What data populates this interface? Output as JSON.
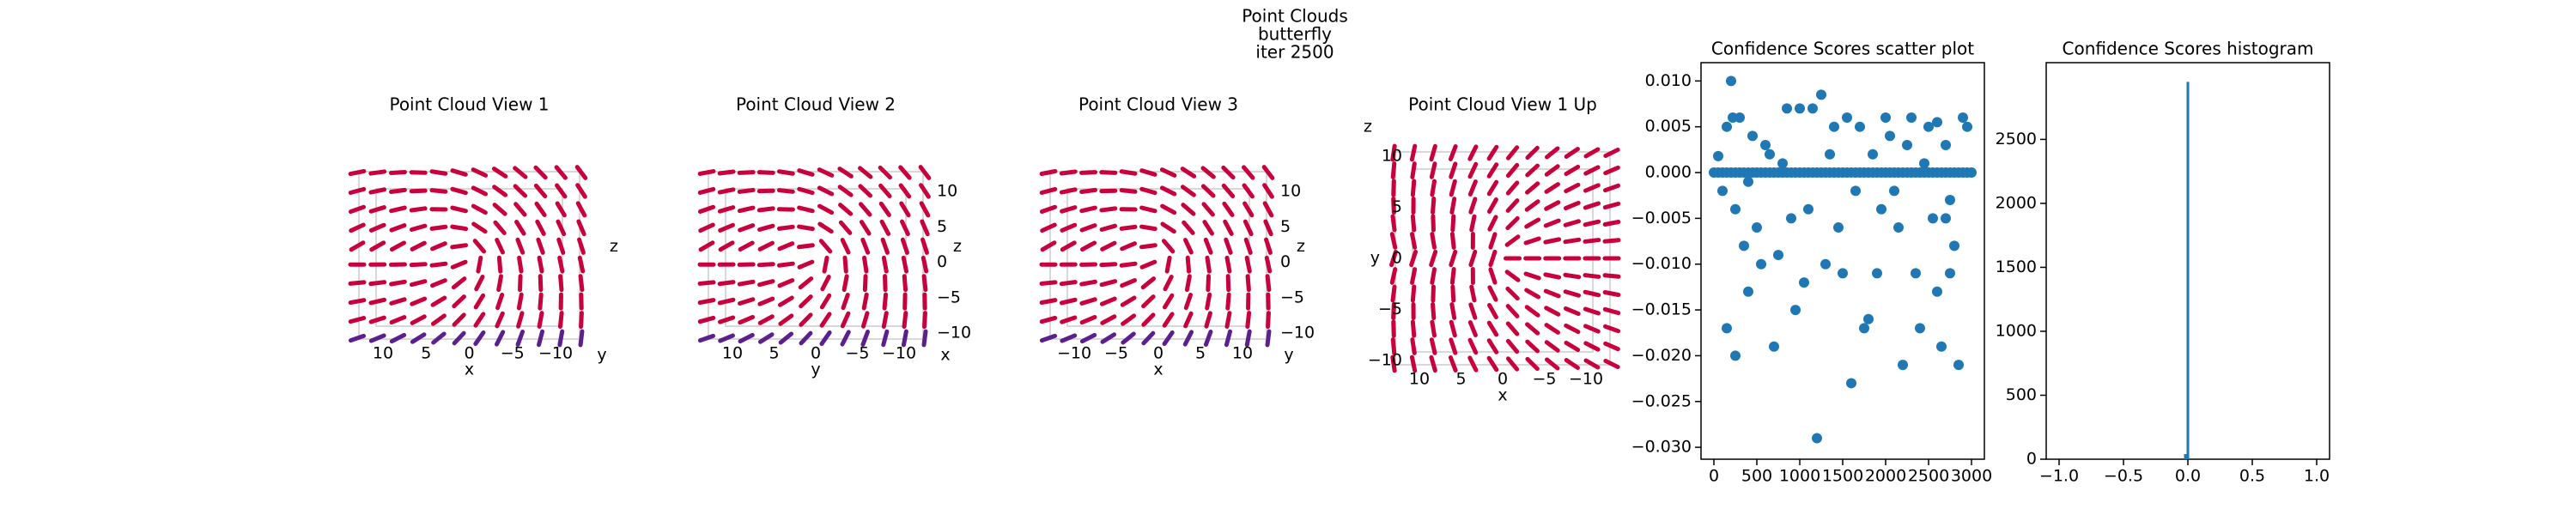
{
  "suptitle": [
    "Point Clouds",
    "butterfly",
    "iter 2500"
  ],
  "chart_data": [
    {
      "type": "pointcloud",
      "title": "Point Cloud View 1",
      "xlabel": "x",
      "zlabel": "z",
      "xticks": [
        10,
        5,
        0,
        {
          "value": -5,
          "label": "−5"
        },
        {
          "value": -10,
          "label": "−10"
        }
      ],
      "ylabel": "y"
    },
    {
      "type": "pointcloud",
      "title": "Point Cloud View 2",
      "xlabel": "y",
      "zlabel": "z",
      "xticks": [
        10,
        5,
        0,
        {
          "value": -5,
          "label": "−5"
        },
        {
          "value": -10,
          "label": "−10"
        }
      ],
      "zticks": [
        10,
        5,
        0,
        {
          "value": -5,
          "label": "−5"
        },
        {
          "value": -10,
          "label": "−10"
        }
      ],
      "ylabel": "x"
    },
    {
      "type": "pointcloud",
      "title": "Point Cloud View 3",
      "xlabel": "x",
      "zlabel": "z",
      "xticks": [
        {
          "value": -10,
          "label": "−10"
        },
        {
          "value": -5,
          "label": "−5"
        },
        0,
        5,
        10
      ],
      "zticks": [
        10,
        5,
        0,
        {
          "value": -5,
          "label": "−5"
        },
        {
          "value": -10,
          "label": "−10"
        }
      ],
      "ylabel": "y"
    },
    {
      "type": "pointcloud",
      "title": "Point Cloud View 1 Up",
      "xlabel": "x",
      "ylabel": "y",
      "zlabel": "z",
      "xticks": [
        10,
        5,
        0,
        {
          "value": -5,
          "label": "−5"
        },
        {
          "value": -10,
          "label": "−10"
        }
      ],
      "yticks": [
        10,
        5,
        0,
        {
          "value": -5,
          "label": "−5"
        },
        {
          "value": -10,
          "label": "−10"
        }
      ]
    },
    {
      "type": "scatter",
      "title": "Confidence Scores scatter plot",
      "color": "#1f77b4",
      "xlim": [
        -150,
        3150
      ],
      "xticks": [
        0,
        500,
        1000,
        1500,
        2000,
        2500,
        3000
      ],
      "ylim": [
        -0.0313,
        0.012
      ],
      "yticks": [
        {
          "value": 0.01,
          "label": "0.010"
        },
        0.005,
        {
          "value": 0,
          "label": "0.000"
        },
        {
          "value": -0.005,
          "label": "−0.005"
        },
        {
          "value": -0.01,
          "label": "−0.010"
        },
        {
          "value": -0.015,
          "label": "−0.015"
        },
        {
          "value": -0.02,
          "label": "−0.020"
        },
        {
          "value": -0.025,
          "label": "−0.025"
        },
        {
          "value": -0.03,
          "label": "−0.030"
        }
      ],
      "x": [
        50,
        100,
        150,
        200,
        220,
        250,
        300,
        350,
        400,
        500,
        600,
        700,
        800,
        900,
        1000,
        1100,
        1150,
        1200,
        1250,
        1300,
        1400,
        1500,
        1600,
        1700,
        1800,
        1900,
        2000,
        2100,
        2200,
        2300,
        2400,
        2500,
        2600,
        2650,
        2700,
        2750,
        2800,
        2850,
        2900,
        2950,
        150,
        250,
        400,
        450,
        550,
        650,
        750,
        850,
        950,
        1050,
        1350,
        1450,
        1550,
        1650,
        1750,
        1850,
        1950,
        2050,
        2150,
        2250,
        2350,
        2450,
        2550,
        2600,
        2700,
        2750,
        0,
        50,
        100,
        150,
        200,
        250,
        300,
        350,
        400,
        450,
        500,
        550,
        600,
        650,
        700,
        750,
        800,
        850,
        900,
        950,
        1000,
        1050,
        1100,
        1150,
        1200,
        1250,
        1300,
        1350,
        1400,
        1450,
        1500,
        1550,
        1600,
        1650,
        1700,
        1750,
        1800,
        1850,
        1900,
        1950,
        2000,
        2050,
        2100,
        2150,
        2200,
        2250,
        2300,
        2350,
        2400,
        2450,
        2500,
        2550,
        2600,
        2650,
        2700,
        2750,
        2800,
        2850,
        2900,
        2950,
        3000
      ],
      "y": [
        0.0018,
        -0.002,
        0.005,
        0.01,
        0.006,
        -0.004,
        0.006,
        -0.008,
        -0.001,
        -0.006,
        0.003,
        -0.019,
        0.001,
        -0.005,
        0.007,
        -0.004,
        0.007,
        -0.029,
        0.0085,
        -0.01,
        0.005,
        -0.011,
        -0.023,
        0.005,
        -0.016,
        -0.011,
        0.006,
        -0.002,
        -0.021,
        0.006,
        -0.017,
        0.005,
        -0.013,
        -0.019,
        0.003,
        -0.011,
        -0.008,
        -0.021,
        0.006,
        0.005,
        -0.017,
        -0.02,
        -0.013,
        0.004,
        -0.01,
        0.002,
        -0.009,
        0.007,
        -0.015,
        -0.012,
        0.002,
        -0.006,
        0.006,
        -0.002,
        -0.017,
        0.002,
        -0.004,
        0.004,
        -0.006,
        0.003,
        -0.011,
        0.001,
        -0.005,
        0.0055,
        -0.005,
        -0.003,
        0,
        0,
        0,
        0,
        0,
        0,
        0,
        0,
        0,
        0,
        0,
        0,
        0,
        0,
        0,
        0,
        0,
        0,
        0,
        0,
        0,
        0,
        0,
        0,
        0,
        0,
        0,
        0,
        0,
        0,
        0,
        0,
        0,
        0,
        0,
        0,
        0,
        0,
        0,
        0,
        0,
        0,
        0,
        0,
        0,
        0,
        0,
        0,
        0,
        0,
        0,
        0,
        0,
        0,
        0,
        0,
        0,
        0,
        0,
        0,
        0
      ]
    },
    {
      "type": "histogram",
      "title": "Confidence Scores histogram",
      "color": "#1f77b4",
      "bins": [
        -0.03,
        -0.01,
        0.01
      ],
      "counts": [
        40,
        2950
      ],
      "xlim": [
        -1.1,
        1.1
      ],
      "xticks": [
        {
          "value": -1,
          "label": "−1.0"
        },
        {
          "value": -0.5,
          "label": "−0.5"
        },
        {
          "value": 0,
          "label": "0.0"
        },
        0.5,
        {
          "value": 1,
          "label": "1.0"
        }
      ],
      "ylim": [
        0,
        3100
      ],
      "yticks": [
        0,
        500,
        1000,
        1500,
        2000,
        2500
      ]
    }
  ]
}
